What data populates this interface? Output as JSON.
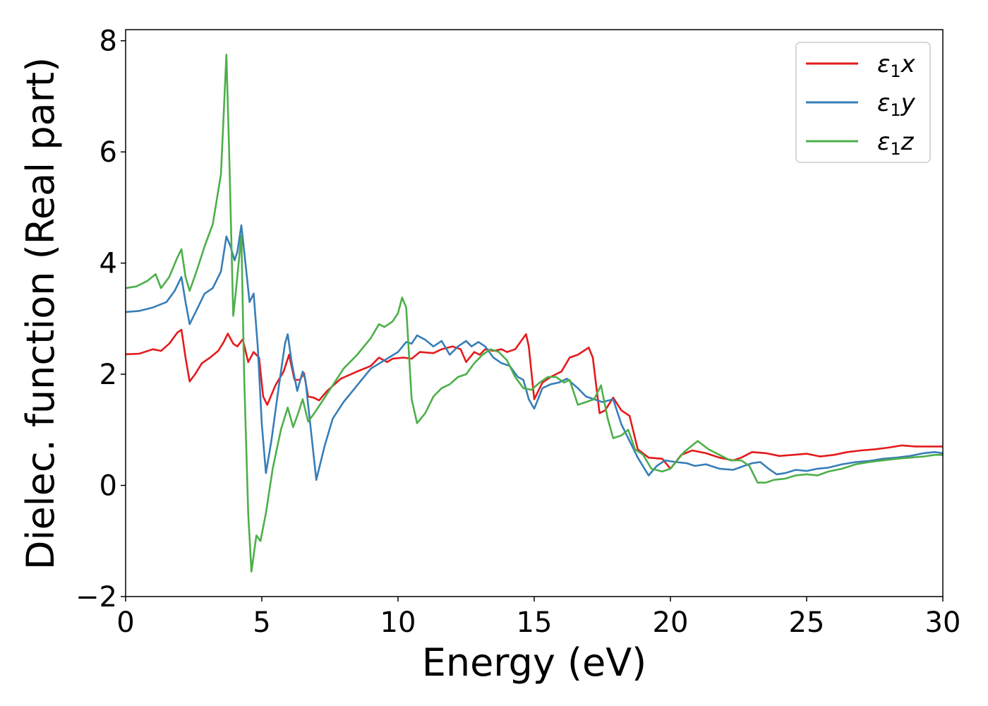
{
  "chart_data": {
    "type": "line",
    "title": "",
    "xlabel": "Energy (eV)",
    "ylabel": "Dielec. function (Real part)",
    "xlim": [
      0,
      30
    ],
    "ylim": [
      -2,
      8.2
    ],
    "xticks": [
      0,
      5,
      10,
      15,
      20,
      25,
      30
    ],
    "yticks": [
      -2,
      0,
      2,
      4,
      6,
      8
    ],
    "xtick_labels": [
      "0",
      "5",
      "10",
      "15",
      "20",
      "25",
      "30"
    ],
    "ytick_labels": [
      "−2",
      "0",
      "2",
      "4",
      "6",
      "8"
    ],
    "grid": false,
    "legend_position": "top-right",
    "series": [
      {
        "name": "ε1x",
        "legend_main": "ε",
        "legend_sub": "1",
        "legend_var": "x",
        "color": "#e41a1c",
        "points": [
          [
            0,
            2.36
          ],
          [
            0.5,
            2.37
          ],
          [
            1.0,
            2.45
          ],
          [
            1.3,
            2.42
          ],
          [
            1.6,
            2.55
          ],
          [
            1.9,
            2.75
          ],
          [
            2.05,
            2.8
          ],
          [
            2.2,
            2.3
          ],
          [
            2.35,
            1.87
          ],
          [
            2.55,
            2.0
          ],
          [
            2.8,
            2.2
          ],
          [
            3.1,
            2.3
          ],
          [
            3.4,
            2.42
          ],
          [
            3.6,
            2.58
          ],
          [
            3.75,
            2.73
          ],
          [
            3.95,
            2.55
          ],
          [
            4.1,
            2.5
          ],
          [
            4.3,
            2.63
          ],
          [
            4.5,
            2.22
          ],
          [
            4.7,
            2.4
          ],
          [
            4.9,
            2.3
          ],
          [
            5.05,
            1.6
          ],
          [
            5.2,
            1.45
          ],
          [
            5.5,
            1.8
          ],
          [
            5.8,
            2.05
          ],
          [
            6.0,
            2.35
          ],
          [
            6.2,
            1.9
          ],
          [
            6.4,
            1.9
          ],
          [
            6.55,
            2.02
          ],
          [
            6.7,
            1.6
          ],
          [
            6.9,
            1.58
          ],
          [
            7.1,
            1.53
          ],
          [
            7.4,
            1.7
          ],
          [
            7.9,
            1.92
          ],
          [
            8.5,
            2.05
          ],
          [
            9.0,
            2.15
          ],
          [
            9.3,
            2.3
          ],
          [
            9.6,
            2.22
          ],
          [
            9.8,
            2.28
          ],
          [
            10.2,
            2.3
          ],
          [
            10.5,
            2.28
          ],
          [
            10.8,
            2.4
          ],
          [
            11.3,
            2.38
          ],
          [
            11.6,
            2.45
          ],
          [
            12.0,
            2.5
          ],
          [
            12.3,
            2.45
          ],
          [
            12.5,
            2.22
          ],
          [
            12.8,
            2.4
          ],
          [
            13.0,
            2.35
          ],
          [
            13.2,
            2.45
          ],
          [
            13.5,
            2.42
          ],
          [
            13.8,
            2.45
          ],
          [
            14.0,
            2.4
          ],
          [
            14.3,
            2.45
          ],
          [
            14.7,
            2.72
          ],
          [
            14.8,
            2.5
          ],
          [
            15.0,
            1.55
          ],
          [
            15.3,
            1.85
          ],
          [
            15.6,
            1.95
          ],
          [
            16.0,
            2.05
          ],
          [
            16.3,
            2.3
          ],
          [
            16.6,
            2.35
          ],
          [
            17.0,
            2.48
          ],
          [
            17.15,
            2.3
          ],
          [
            17.4,
            1.3
          ],
          [
            17.6,
            1.35
          ],
          [
            17.9,
            1.58
          ],
          [
            18.2,
            1.35
          ],
          [
            18.5,
            1.25
          ],
          [
            18.8,
            0.65
          ],
          [
            19.2,
            0.5
          ],
          [
            19.7,
            0.48
          ],
          [
            20.0,
            0.3
          ],
          [
            20.4,
            0.55
          ],
          [
            20.8,
            0.63
          ],
          [
            21.3,
            0.58
          ],
          [
            21.8,
            0.5
          ],
          [
            22.3,
            0.45
          ],
          [
            22.6,
            0.5
          ],
          [
            23.0,
            0.6
          ],
          [
            23.5,
            0.58
          ],
          [
            24.0,
            0.53
          ],
          [
            24.5,
            0.55
          ],
          [
            25.0,
            0.57
          ],
          [
            25.5,
            0.52
          ],
          [
            26.0,
            0.55
          ],
          [
            26.5,
            0.6
          ],
          [
            27.0,
            0.63
          ],
          [
            27.5,
            0.65
          ],
          [
            28.0,
            0.68
          ],
          [
            28.5,
            0.72
          ],
          [
            29.0,
            0.7
          ],
          [
            29.5,
            0.7
          ],
          [
            30.0,
            0.7
          ]
        ]
      },
      {
        "name": "ε1y",
        "legend_main": "ε",
        "legend_sub": "1",
        "legend_var": "y",
        "color": "#377eb8",
        "points": [
          [
            0,
            3.12
          ],
          [
            0.5,
            3.14
          ],
          [
            1.0,
            3.2
          ],
          [
            1.5,
            3.3
          ],
          [
            1.8,
            3.5
          ],
          [
            2.05,
            3.75
          ],
          [
            2.2,
            3.3
          ],
          [
            2.35,
            2.9
          ],
          [
            2.6,
            3.15
          ],
          [
            2.9,
            3.45
          ],
          [
            3.2,
            3.55
          ],
          [
            3.5,
            3.85
          ],
          [
            3.7,
            4.48
          ],
          [
            3.85,
            4.3
          ],
          [
            4.0,
            4.05
          ],
          [
            4.1,
            4.2
          ],
          [
            4.25,
            4.68
          ],
          [
            4.4,
            4.0
          ],
          [
            4.55,
            3.3
          ],
          [
            4.7,
            3.45
          ],
          [
            4.85,
            2.5
          ],
          [
            5.0,
            1.1
          ],
          [
            5.15,
            0.22
          ],
          [
            5.35,
            0.8
          ],
          [
            5.6,
            1.7
          ],
          [
            5.85,
            2.55
          ],
          [
            5.95,
            2.72
          ],
          [
            6.1,
            2.2
          ],
          [
            6.3,
            1.7
          ],
          [
            6.5,
            2.05
          ],
          [
            6.6,
            1.9
          ],
          [
            6.8,
            1.0
          ],
          [
            7.0,
            0.1
          ],
          [
            7.3,
            0.7
          ],
          [
            7.6,
            1.2
          ],
          [
            8.0,
            1.5
          ],
          [
            8.5,
            1.8
          ],
          [
            9.0,
            2.1
          ],
          [
            9.5,
            2.25
          ],
          [
            10.0,
            2.4
          ],
          [
            10.3,
            2.58
          ],
          [
            10.5,
            2.55
          ],
          [
            10.7,
            2.7
          ],
          [
            11.0,
            2.62
          ],
          [
            11.3,
            2.5
          ],
          [
            11.6,
            2.6
          ],
          [
            11.9,
            2.35
          ],
          [
            12.2,
            2.5
          ],
          [
            12.5,
            2.6
          ],
          [
            12.7,
            2.5
          ],
          [
            12.95,
            2.58
          ],
          [
            13.2,
            2.5
          ],
          [
            13.5,
            2.3
          ],
          [
            13.8,
            2.2
          ],
          [
            14.1,
            2.15
          ],
          [
            14.4,
            1.95
          ],
          [
            14.6,
            1.9
          ],
          [
            14.8,
            1.55
          ],
          [
            15.0,
            1.38
          ],
          [
            15.3,
            1.75
          ],
          [
            15.6,
            1.82
          ],
          [
            15.9,
            1.85
          ],
          [
            16.2,
            1.92
          ],
          [
            16.6,
            1.75
          ],
          [
            16.9,
            1.6
          ],
          [
            17.2,
            1.55
          ],
          [
            17.5,
            1.5
          ],
          [
            17.9,
            1.55
          ],
          [
            18.2,
            1.1
          ],
          [
            18.5,
            0.8
          ],
          [
            18.8,
            0.5
          ],
          [
            19.2,
            0.18
          ],
          [
            19.5,
            0.35
          ],
          [
            19.8,
            0.45
          ],
          [
            20.2,
            0.42
          ],
          [
            20.6,
            0.4
          ],
          [
            20.9,
            0.35
          ],
          [
            21.3,
            0.38
          ],
          [
            21.8,
            0.3
          ],
          [
            22.3,
            0.28
          ],
          [
            22.7,
            0.35
          ],
          [
            23.0,
            0.4
          ],
          [
            23.3,
            0.42
          ],
          [
            23.6,
            0.3
          ],
          [
            23.9,
            0.2
          ],
          [
            24.2,
            0.22
          ],
          [
            24.6,
            0.28
          ],
          [
            25.0,
            0.26
          ],
          [
            25.4,
            0.3
          ],
          [
            25.8,
            0.32
          ],
          [
            26.3,
            0.38
          ],
          [
            26.8,
            0.42
          ],
          [
            27.3,
            0.44
          ],
          [
            27.8,
            0.48
          ],
          [
            28.3,
            0.5
          ],
          [
            28.8,
            0.53
          ],
          [
            29.3,
            0.58
          ],
          [
            29.7,
            0.6
          ],
          [
            30.0,
            0.58
          ]
        ]
      },
      {
        "name": "ε1z",
        "legend_main": "ε",
        "legend_sub": "1",
        "legend_var": "z",
        "color": "#4daf4a",
        "points": [
          [
            0,
            3.55
          ],
          [
            0.4,
            3.58
          ],
          [
            0.8,
            3.68
          ],
          [
            1.1,
            3.8
          ],
          [
            1.3,
            3.55
          ],
          [
            1.6,
            3.75
          ],
          [
            1.9,
            4.1
          ],
          [
            2.05,
            4.25
          ],
          [
            2.2,
            3.75
          ],
          [
            2.35,
            3.5
          ],
          [
            2.6,
            3.85
          ],
          [
            2.9,
            4.3
          ],
          [
            3.2,
            4.7
          ],
          [
            3.5,
            5.6
          ],
          [
            3.7,
            7.75
          ],
          [
            3.8,
            6.0
          ],
          [
            3.95,
            3.05
          ],
          [
            4.05,
            3.5
          ],
          [
            4.25,
            4.5
          ],
          [
            4.35,
            2.0
          ],
          [
            4.5,
            -0.5
          ],
          [
            4.62,
            -1.55
          ],
          [
            4.8,
            -0.9
          ],
          [
            4.95,
            -1.0
          ],
          [
            5.15,
            -0.5
          ],
          [
            5.4,
            0.3
          ],
          [
            5.7,
            1.0
          ],
          [
            5.95,
            1.4
          ],
          [
            6.15,
            1.05
          ],
          [
            6.3,
            1.25
          ],
          [
            6.5,
            1.55
          ],
          [
            6.7,
            1.15
          ],
          [
            6.9,
            1.28
          ],
          [
            7.2,
            1.5
          ],
          [
            7.6,
            1.8
          ],
          [
            8.0,
            2.1
          ],
          [
            8.5,
            2.35
          ],
          [
            9.0,
            2.65
          ],
          [
            9.3,
            2.9
          ],
          [
            9.5,
            2.85
          ],
          [
            9.8,
            2.95
          ],
          [
            10.0,
            3.1
          ],
          [
            10.15,
            3.38
          ],
          [
            10.3,
            3.2
          ],
          [
            10.5,
            1.55
          ],
          [
            10.7,
            1.12
          ],
          [
            11.0,
            1.3
          ],
          [
            11.3,
            1.6
          ],
          [
            11.6,
            1.75
          ],
          [
            11.9,
            1.82
          ],
          [
            12.2,
            1.95
          ],
          [
            12.5,
            2.0
          ],
          [
            12.8,
            2.2
          ],
          [
            13.1,
            2.35
          ],
          [
            13.4,
            2.45
          ],
          [
            13.7,
            2.4
          ],
          [
            14.0,
            2.25
          ],
          [
            14.3,
            1.95
          ],
          [
            14.6,
            1.75
          ],
          [
            14.9,
            1.72
          ],
          [
            15.2,
            1.85
          ],
          [
            15.5,
            1.95
          ],
          [
            15.8,
            1.95
          ],
          [
            16.1,
            1.85
          ],
          [
            16.3,
            1.9
          ],
          [
            16.6,
            1.45
          ],
          [
            16.9,
            1.5
          ],
          [
            17.2,
            1.55
          ],
          [
            17.45,
            1.8
          ],
          [
            17.7,
            1.2
          ],
          [
            17.9,
            0.85
          ],
          [
            18.2,
            0.9
          ],
          [
            18.45,
            1.0
          ],
          [
            18.7,
            0.65
          ],
          [
            19.0,
            0.55
          ],
          [
            19.3,
            0.3
          ],
          [
            19.7,
            0.25
          ],
          [
            20.0,
            0.3
          ],
          [
            20.5,
            0.6
          ],
          [
            21.0,
            0.8
          ],
          [
            21.4,
            0.65
          ],
          [
            21.8,
            0.55
          ],
          [
            22.2,
            0.45
          ],
          [
            22.6,
            0.45
          ],
          [
            22.9,
            0.35
          ],
          [
            23.2,
            0.05
          ],
          [
            23.5,
            0.05
          ],
          [
            23.8,
            0.1
          ],
          [
            24.2,
            0.12
          ],
          [
            24.6,
            0.18
          ],
          [
            25.0,
            0.2
          ],
          [
            25.4,
            0.18
          ],
          [
            25.8,
            0.25
          ],
          [
            26.3,
            0.3
          ],
          [
            26.8,
            0.38
          ],
          [
            27.3,
            0.42
          ],
          [
            27.8,
            0.45
          ],
          [
            28.3,
            0.48
          ],
          [
            28.8,
            0.5
          ],
          [
            29.3,
            0.52
          ],
          [
            29.7,
            0.55
          ],
          [
            30.0,
            0.55
          ]
        ]
      }
    ]
  }
}
